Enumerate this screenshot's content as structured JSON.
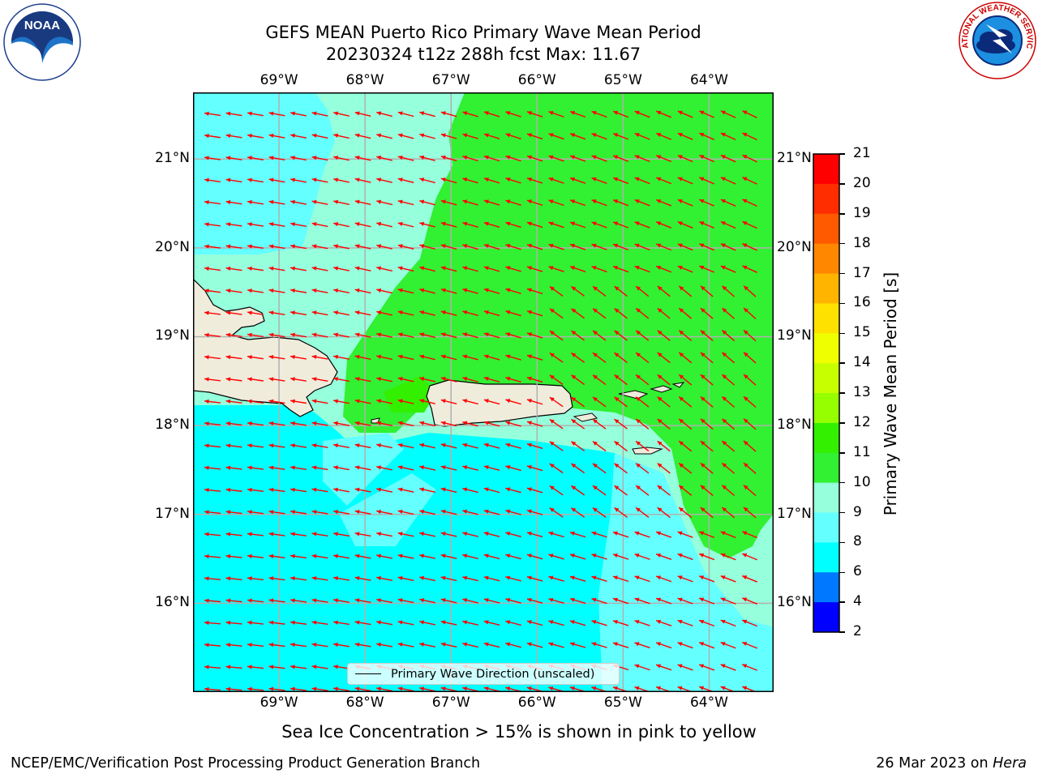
{
  "title": {
    "line1": "GEFS MEAN Puerto Rico Primary Wave Mean Period",
    "line2": "20230324 t12z 288h fcst   Max: 11.67"
  },
  "map": {
    "lon_range": [
      -70.0,
      -63.25
    ],
    "lat_range": [
      15.0,
      21.75
    ],
    "lon_ticks": [
      "69°W",
      "68°W",
      "67°W",
      "66°W",
      "65°W",
      "64°W"
    ],
    "lat_ticks": [
      "21°N",
      "20°N",
      "19°N",
      "18°N",
      "17°N",
      "16°N"
    ],
    "grid": true,
    "vector_field": {
      "name": "Primary Wave Direction (unscaled)",
      "color": "#ff0000",
      "dominant_direction": "from east-southeast toward west"
    },
    "land_color": "#efecdc",
    "regions_shown": [
      "Hispaniola (east)",
      "Puerto Rico",
      "Virgin Islands",
      "Vieques",
      "St. Croix"
    ]
  },
  "legend": {
    "label": "Primary Wave Direction (unscaled)",
    "placement": "lower-center"
  },
  "colorbar": {
    "label": "Primary Wave Mean Period [s]",
    "ticks": [
      "21",
      "20",
      "19",
      "18",
      "17",
      "16",
      "15",
      "14",
      "13",
      "12",
      "11",
      "10",
      "9",
      "8",
      "6",
      "4",
      "2"
    ],
    "colors": [
      "#ff0000",
      "#ff2d00",
      "#ff5a00",
      "#ff8700",
      "#ffb400",
      "#ffe100",
      "#f0ff00",
      "#c8ff00",
      "#96ff00",
      "#32f000",
      "#32f032",
      "#96ffdc",
      "#64ffff",
      "#00ffff",
      "#0078ff",
      "#0000ff"
    ]
  },
  "note": "Sea Ice Concentration > 15% is shown in pink to yellow",
  "footer": {
    "left": "NCEP/EMC/Verification Post Processing Product Generation Branch",
    "date": "26 Mar 2023 on ",
    "machine": "Hera"
  },
  "logos": {
    "left": "NOAA",
    "right": "NATIONAL WEATHER SERVICE"
  }
}
